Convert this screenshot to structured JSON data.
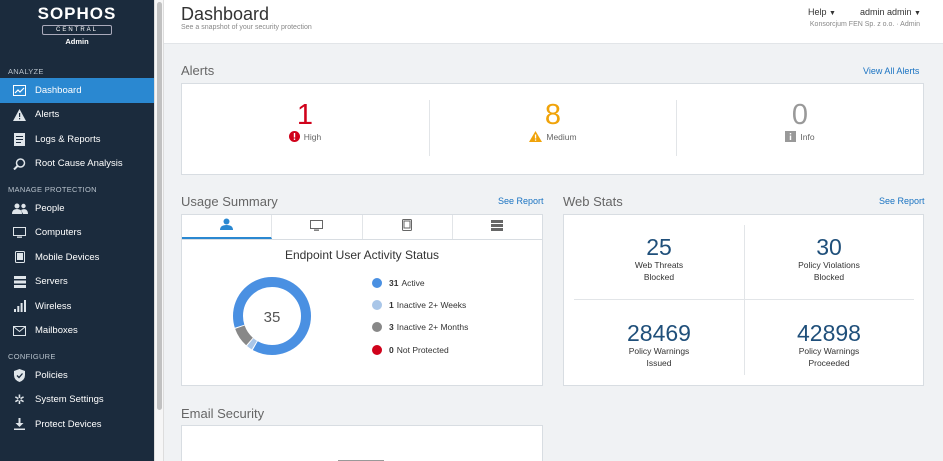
{
  "brand": {
    "name": "SOPHOS",
    "product": "CENTRAL",
    "role": "Admin"
  },
  "sidebar": {
    "sections": [
      {
        "label": "ANALYZE",
        "items": [
          {
            "label": "Dashboard",
            "icon": "dashboard-icon",
            "active": true
          },
          {
            "label": "Alerts",
            "icon": "warning-icon"
          },
          {
            "label": "Logs & Reports",
            "icon": "report-icon"
          },
          {
            "label": "Root Cause Analysis",
            "icon": "root-cause-icon"
          }
        ]
      },
      {
        "label": "MANAGE PROTECTION",
        "items": [
          {
            "label": "People",
            "icon": "people-icon"
          },
          {
            "label": "Computers",
            "icon": "computer-icon"
          },
          {
            "label": "Mobile Devices",
            "icon": "mobile-icon"
          },
          {
            "label": "Servers",
            "icon": "server-icon"
          },
          {
            "label": "Wireless",
            "icon": "wireless-icon"
          },
          {
            "label": "Mailboxes",
            "icon": "mail-icon"
          }
        ]
      },
      {
        "label": "CONFIGURE",
        "items": [
          {
            "label": "Policies",
            "icon": "shield-icon"
          },
          {
            "label": "System Settings",
            "icon": "gear-icon"
          },
          {
            "label": "Protect Devices",
            "icon": "download-icon"
          }
        ]
      }
    ]
  },
  "header": {
    "title": "Dashboard",
    "subtitle": "See a snapshot of your security protection",
    "help": "Help",
    "user": "admin admin",
    "company": "Konsorcjum FEN Sp. z o.o. · Admin"
  },
  "alerts": {
    "title": "Alerts",
    "link": "View All Alerts",
    "items": [
      {
        "count": "1",
        "label": "High",
        "color": "#d0021b"
      },
      {
        "count": "8",
        "label": "Medium",
        "color": "#f0a30a"
      },
      {
        "count": "0",
        "label": "Info",
        "color": "#999999"
      }
    ]
  },
  "usage": {
    "title": "Usage Summary",
    "link": "See Report",
    "chart_title": "Endpoint User Activity Status",
    "total": "35",
    "legend": [
      {
        "count": "31",
        "label": "Active",
        "color": "#4a90e2",
        "value": 31
      },
      {
        "count": "1",
        "label": "Inactive 2+ Weeks",
        "color": "#a9c6e8",
        "value": 1
      },
      {
        "count": "3",
        "label": "Inactive 2+ Months",
        "color": "#888888",
        "value": 3
      },
      {
        "count": "0",
        "label": "Not Protected",
        "color": "#d0021b",
        "value": 0
      }
    ]
  },
  "web_stats": {
    "title": "Web Stats",
    "link": "See Report",
    "items": [
      {
        "value": "25",
        "line1": "Web Threats",
        "line2": "Blocked"
      },
      {
        "value": "30",
        "line1": "Policy Violations",
        "line2": "Blocked"
      },
      {
        "value": "28469",
        "line1": "Policy Warnings",
        "line2": "Issued"
      },
      {
        "value": "42898",
        "line1": "Policy Warnings",
        "line2": "Proceeded"
      }
    ]
  },
  "email_security": {
    "title": "Email Security"
  }
}
